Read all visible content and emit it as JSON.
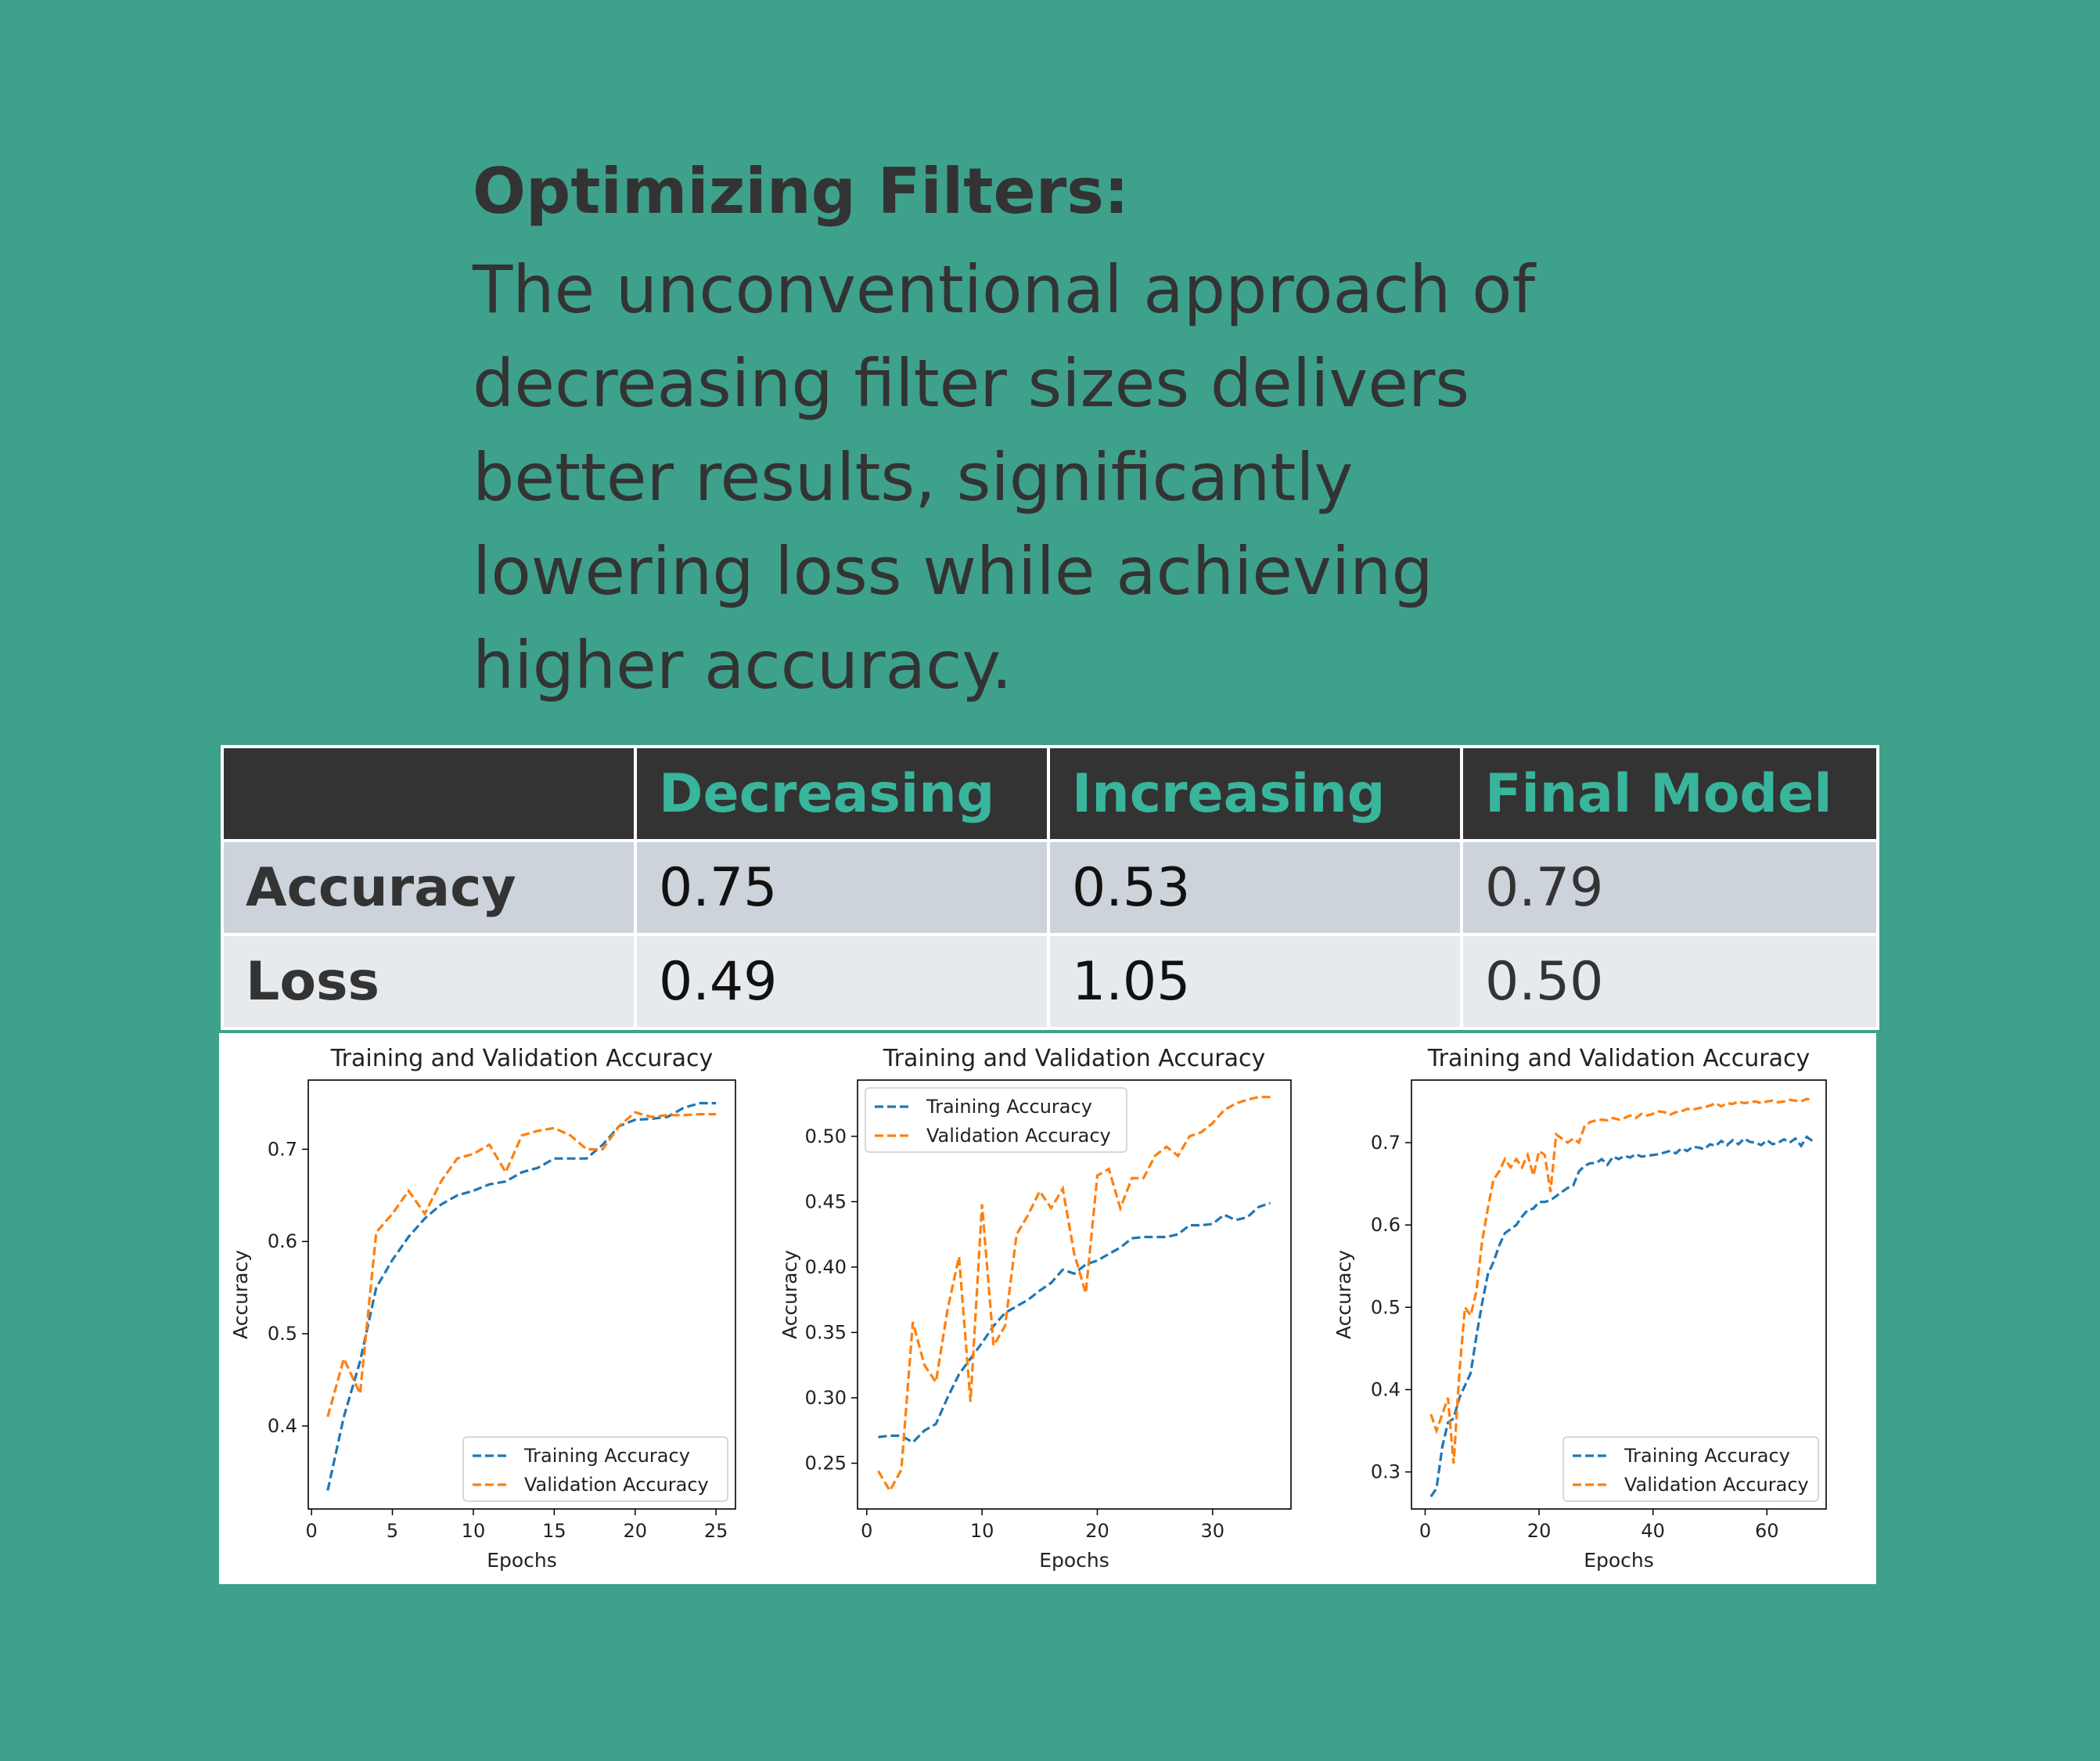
{
  "text": {
    "heading": "Optimizing Filters:",
    "body": "The unconventional approach of decreasing filter sizes delivers better results, significantly lowering loss while achieving higher accuracy."
  },
  "table": {
    "headers": [
      "",
      "Decreasing",
      "Increasing",
      "Final Model"
    ],
    "rows": [
      {
        "label": "Accuracy",
        "values": [
          "0.75",
          "0.53",
          "0.79"
        ]
      },
      {
        "label": "Loss",
        "values": [
          "0.49",
          "1.05",
          "0.50"
        ]
      }
    ]
  },
  "colors": {
    "background": "#3ea18b",
    "header_bg": "#333333",
    "header_text": "#39b59c",
    "row1_bg": "#cdd3da",
    "row2_bg": "#e7eaed",
    "training": "#1f77b4",
    "validation": "#ff7f0e"
  },
  "chart_data": [
    {
      "type": "line",
      "title": "Training and Validation Accuracy",
      "xlabel": "Epochs",
      "ylabel": "Accuracy",
      "xlim": [
        -0.2,
        26.2
      ],
      "ylim": [
        0.31,
        0.775
      ],
      "xticks": [
        0,
        5,
        10,
        15,
        20,
        25
      ],
      "yticks": [
        0.4,
        0.5,
        0.6,
        0.7
      ],
      "legend": "lower-right",
      "series": [
        {
          "name": "Training Accuracy",
          "color": "#1f77b4",
          "x": [
            1,
            2,
            3,
            4,
            5,
            6,
            7,
            8,
            9,
            10,
            11,
            12,
            13,
            14,
            15,
            16,
            17,
            18,
            19,
            20,
            21,
            22,
            23,
            24,
            25
          ],
          "y": [
            0.33,
            0.41,
            0.47,
            0.55,
            0.58,
            0.605,
            0.625,
            0.64,
            0.65,
            0.655,
            0.662,
            0.665,
            0.675,
            0.68,
            0.69,
            0.69,
            0.69,
            0.705,
            0.725,
            0.732,
            0.733,
            0.735,
            0.745,
            0.75,
            0.75
          ]
        },
        {
          "name": "Validation Accuracy",
          "color": "#ff7f0e",
          "x": [
            1,
            2,
            3,
            4,
            5,
            6,
            7,
            8,
            9,
            10,
            11,
            12,
            13,
            14,
            15,
            16,
            17,
            18,
            19,
            20,
            21,
            22,
            23,
            24,
            25
          ],
          "y": [
            0.41,
            0.473,
            0.435,
            0.61,
            0.63,
            0.655,
            0.63,
            0.665,
            0.69,
            0.695,
            0.705,
            0.675,
            0.715,
            0.72,
            0.723,
            0.715,
            0.7,
            0.7,
            0.725,
            0.74,
            0.735,
            0.737,
            0.737,
            0.738,
            0.738
          ]
        }
      ]
    },
    {
      "type": "line",
      "title": "Training and Validation Accuracy",
      "xlabel": "Epochs",
      "ylabel": "Accuracy",
      "xlim": [
        -0.8,
        36.8
      ],
      "ylim": [
        0.215,
        0.543
      ],
      "xticks": [
        0,
        10,
        20,
        30
      ],
      "yticks": [
        0.25,
        0.3,
        0.35,
        0.4,
        0.45,
        0.5
      ],
      "legend": "upper-left",
      "series": [
        {
          "name": "Training Accuracy",
          "color": "#1f77b4",
          "x": [
            1,
            2,
            3,
            4,
            5,
            6,
            7,
            8,
            9,
            10,
            11,
            12,
            13,
            14,
            15,
            16,
            17,
            18,
            19,
            20,
            21,
            22,
            23,
            24,
            25,
            26,
            27,
            28,
            29,
            30,
            31,
            32,
            33,
            34,
            35
          ],
          "y": [
            0.27,
            0.271,
            0.271,
            0.266,
            0.275,
            0.28,
            0.3,
            0.318,
            0.33,
            0.342,
            0.355,
            0.365,
            0.37,
            0.375,
            0.382,
            0.388,
            0.398,
            0.395,
            0.402,
            0.405,
            0.41,
            0.415,
            0.422,
            0.423,
            0.423,
            0.423,
            0.425,
            0.432,
            0.432,
            0.433,
            0.44,
            0.436,
            0.438,
            0.446,
            0.449
          ]
        },
        {
          "name": "Validation Accuracy",
          "color": "#ff7f0e",
          "x": [
            1,
            2,
            3,
            4,
            5,
            6,
            7,
            8,
            9,
            10,
            11,
            12,
            13,
            14,
            15,
            16,
            17,
            18,
            19,
            20,
            21,
            22,
            23,
            24,
            25,
            26,
            27,
            28,
            29,
            30,
            31,
            32,
            33,
            34,
            35
          ],
          "y": [
            0.244,
            0.229,
            0.245,
            0.358,
            0.325,
            0.312,
            0.367,
            0.408,
            0.297,
            0.448,
            0.34,
            0.355,
            0.425,
            0.44,
            0.458,
            0.445,
            0.46,
            0.41,
            0.38,
            0.47,
            0.475,
            0.445,
            0.468,
            0.468,
            0.485,
            0.492,
            0.485,
            0.5,
            0.503,
            0.51,
            0.52,
            0.525,
            0.528,
            0.53,
            0.53
          ]
        }
      ]
    },
    {
      "type": "line",
      "title": "Training and Validation Accuracy",
      "xlabel": "Epochs",
      "ylabel": "Accuracy",
      "xlim": [
        -2.4,
        70.4
      ],
      "ylim": [
        0.255,
        0.776
      ],
      "xticks": [
        0,
        20,
        40,
        60
      ],
      "yticks": [
        0.3,
        0.4,
        0.5,
        0.6,
        0.7
      ],
      "legend": "lower-right",
      "series": [
        {
          "name": "Training Accuracy",
          "color": "#1f77b4",
          "x": [
            1,
            2,
            3,
            4,
            5,
            6,
            7,
            8,
            9,
            10,
            11,
            12,
            13,
            14,
            15,
            16,
            17,
            18,
            19,
            20,
            21,
            22,
            23,
            24,
            25,
            26,
            27,
            28,
            29,
            30,
            31,
            32,
            33,
            34,
            35,
            36,
            37,
            38,
            39,
            40,
            41,
            42,
            43,
            44,
            45,
            46,
            47,
            48,
            49,
            50,
            51,
            52,
            53,
            54,
            55,
            56,
            57,
            58,
            59,
            60,
            61,
            62,
            63,
            64,
            65,
            66,
            67,
            68
          ],
          "y": [
            0.27,
            0.28,
            0.33,
            0.36,
            0.365,
            0.39,
            0.405,
            0.42,
            0.465,
            0.505,
            0.54,
            0.555,
            0.575,
            0.59,
            0.595,
            0.6,
            0.61,
            0.618,
            0.62,
            0.628,
            0.628,
            0.63,
            0.635,
            0.64,
            0.645,
            0.648,
            0.665,
            0.672,
            0.675,
            0.675,
            0.68,
            0.673,
            0.683,
            0.68,
            0.684,
            0.682,
            0.686,
            0.683,
            0.684,
            0.685,
            0.686,
            0.688,
            0.69,
            0.687,
            0.693,
            0.69,
            0.695,
            0.694,
            0.692,
            0.698,
            0.696,
            0.702,
            0.697,
            0.703,
            0.698,
            0.705,
            0.701,
            0.7,
            0.697,
            0.703,
            0.698,
            0.7,
            0.704,
            0.7,
            0.705,
            0.696,
            0.707,
            0.702
          ]
        },
        {
          "name": "Validation Accuracy",
          "color": "#ff7f0e",
          "x": [
            1,
            2,
            3,
            4,
            5,
            6,
            7,
            8,
            9,
            10,
            11,
            12,
            13,
            14,
            15,
            16,
            17,
            18,
            19,
            20,
            21,
            22,
            23,
            24,
            25,
            26,
            27,
            28,
            29,
            30,
            31,
            32,
            33,
            34,
            35,
            36,
            37,
            38,
            39,
            40,
            41,
            42,
            43,
            44,
            45,
            46,
            47,
            48,
            49,
            50,
            51,
            52,
            53,
            54,
            55,
            56,
            57,
            58,
            59,
            60,
            61,
            62,
            63,
            64,
            65,
            66,
            67,
            68
          ],
          "y": [
            0.37,
            0.35,
            0.37,
            0.39,
            0.31,
            0.42,
            0.5,
            0.49,
            0.52,
            0.58,
            0.62,
            0.655,
            0.665,
            0.68,
            0.67,
            0.68,
            0.67,
            0.685,
            0.66,
            0.69,
            0.685,
            0.64,
            0.71,
            0.705,
            0.7,
            0.705,
            0.7,
            0.72,
            0.725,
            0.727,
            0.728,
            0.727,
            0.73,
            0.728,
            0.73,
            0.733,
            0.73,
            0.735,
            0.733,
            0.735,
            0.738,
            0.737,
            0.734,
            0.737,
            0.738,
            0.741,
            0.74,
            0.742,
            0.743,
            0.745,
            0.748,
            0.744,
            0.748,
            0.747,
            0.75,
            0.748,
            0.749,
            0.75,
            0.748,
            0.75,
            0.751,
            0.749,
            0.75,
            0.752,
            0.751,
            0.75,
            0.753,
            0.752
          ]
        }
      ]
    }
  ]
}
